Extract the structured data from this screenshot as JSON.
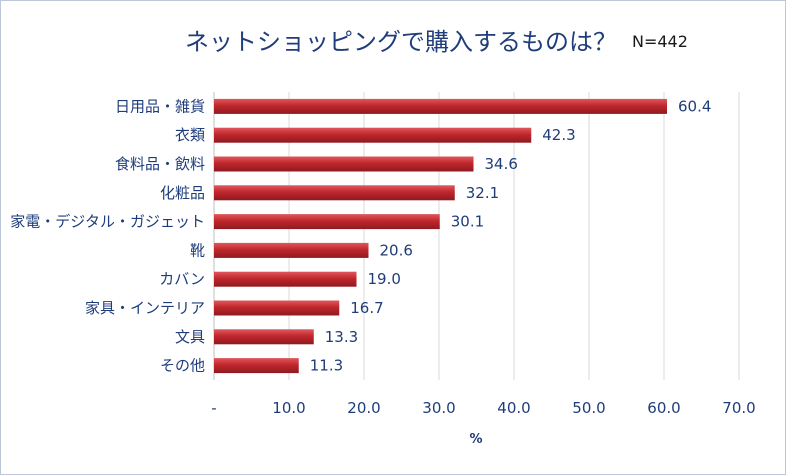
{
  "chart_data": {
    "type": "bar",
    "orientation": "horizontal",
    "title": "ネットショッピングで購入するものは？",
    "note": "N=442",
    "categories": [
      "日用品・雑貨",
      "衣類",
      "食料品・飲料",
      "化粧品",
      "家電・デジタル・ガジェット",
      "靴",
      "カバン",
      "家具・インテリア",
      "文具",
      "その他"
    ],
    "values": [
      60.4,
      42.3,
      34.6,
      32.1,
      30.1,
      20.6,
      19.0,
      16.7,
      13.3,
      11.3
    ],
    "value_labels": [
      "60.4",
      "42.3",
      "34.6",
      "32.1",
      "30.1",
      "20.6",
      "19.0",
      "16.7",
      "13.3",
      "11.3"
    ],
    "xlim": [
      0,
      70
    ],
    "x_ticks": [
      0,
      10,
      20,
      30,
      40,
      50,
      60,
      70
    ],
    "x_tick_labels": [
      "-",
      "10.0",
      "20.0",
      "30.0",
      "40.0",
      "50.0",
      "60.0",
      "70.0"
    ],
    "xlabel": "%",
    "grid": "vertical",
    "bar_color": "#c0272d",
    "grid_color": "#d9d9d9"
  }
}
